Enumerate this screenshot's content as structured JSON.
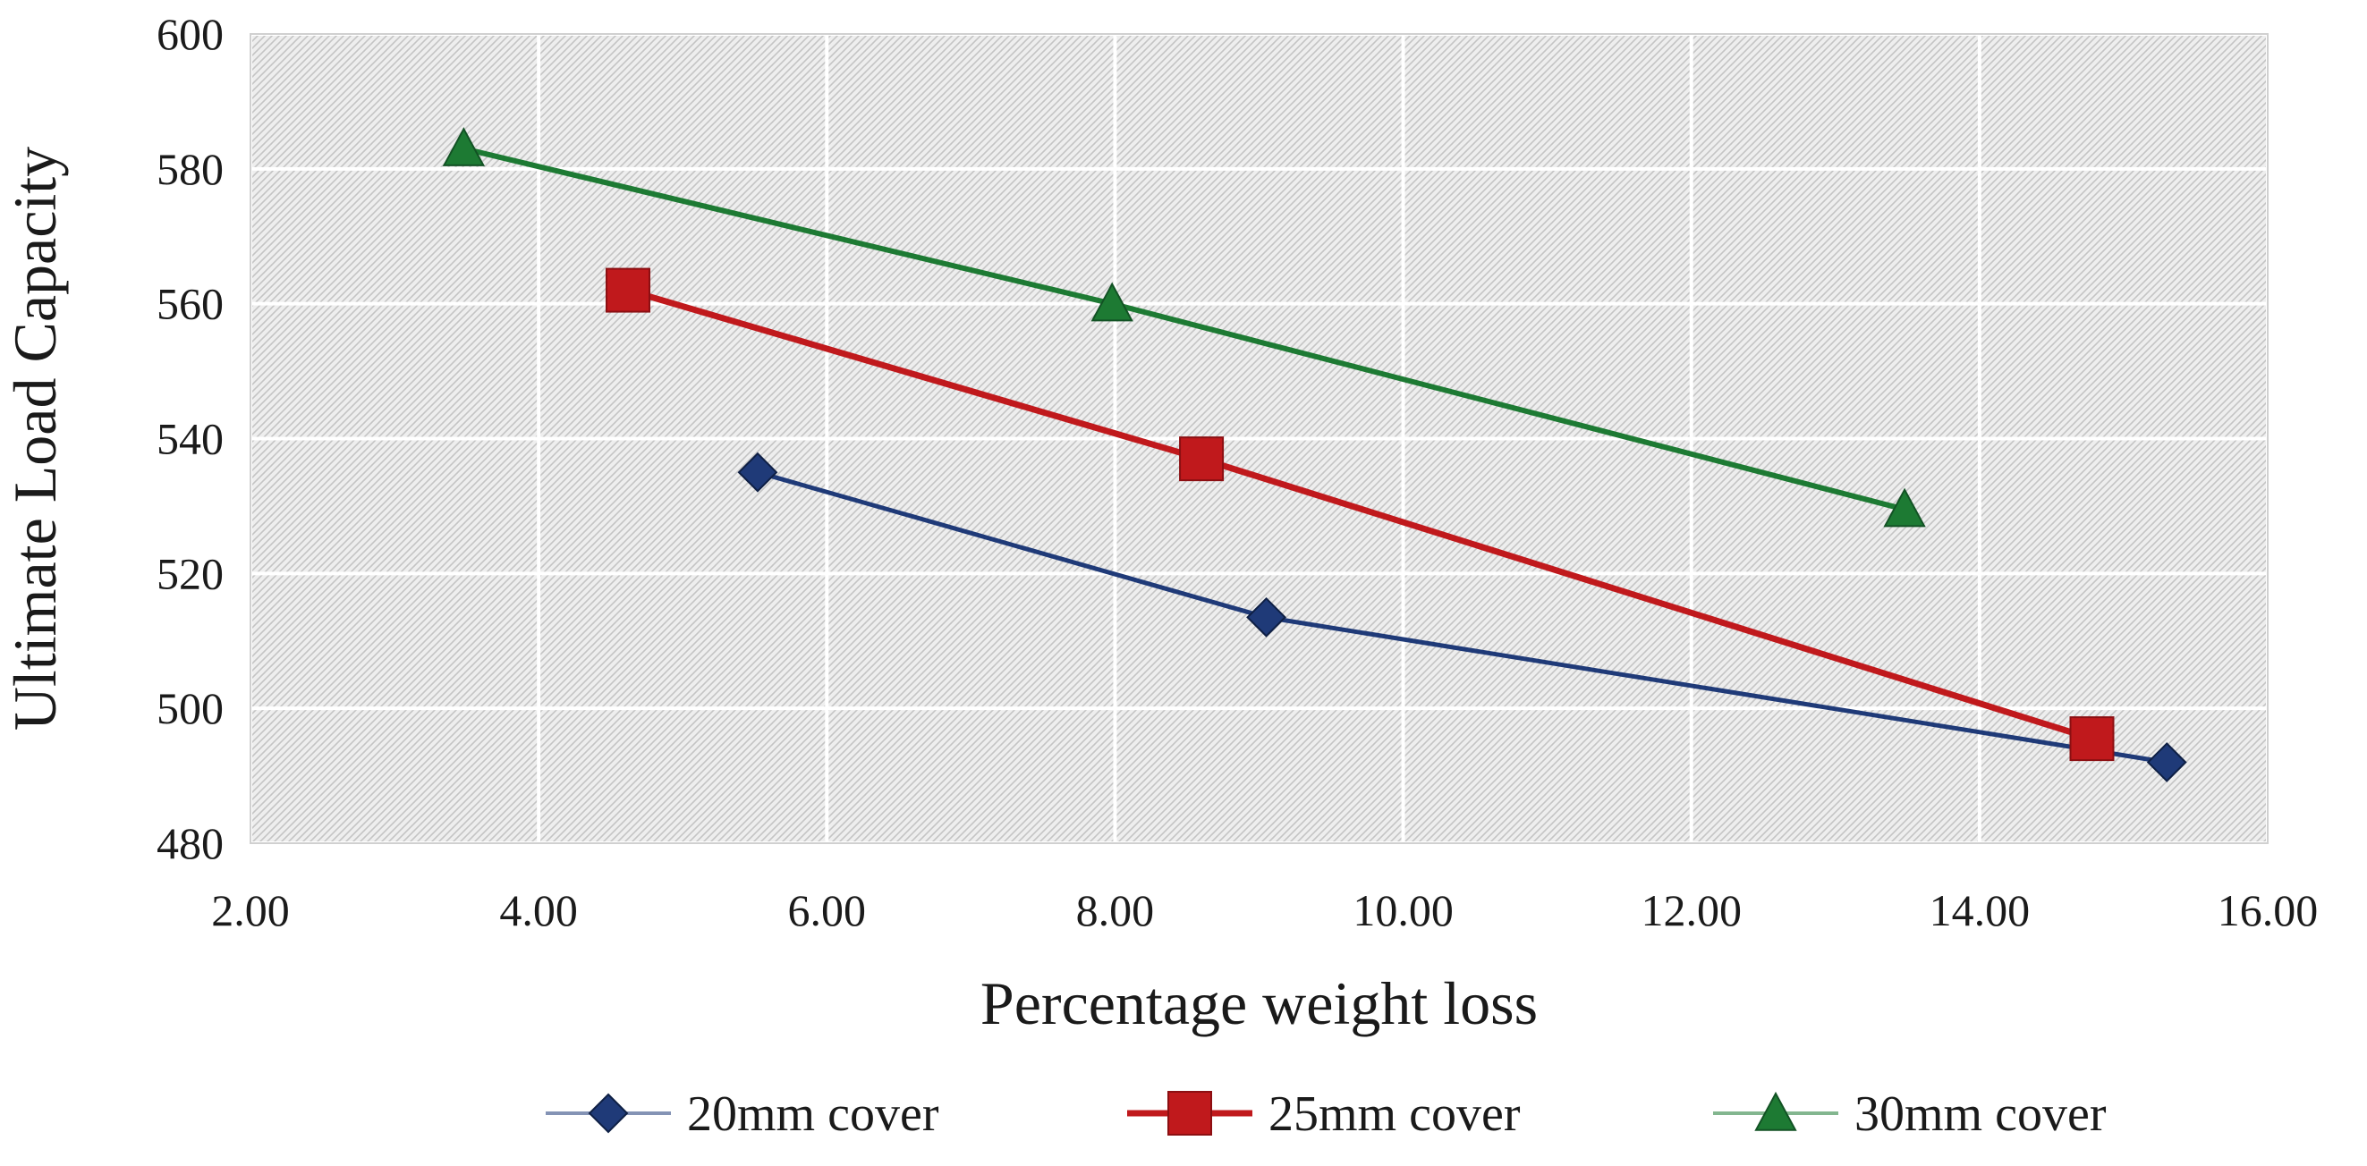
{
  "chart_data": {
    "type": "line",
    "title": "",
    "xlabel": "Percentage weight loss",
    "ylabel": "Ultimate Load Capacity",
    "xlim": [
      2,
      16
    ],
    "ylim": [
      480,
      600
    ],
    "x_ticks": [
      "2.00",
      "4.00",
      "6.00",
      "8.00",
      "10.00",
      "12.00",
      "14.00",
      "16.00"
    ],
    "y_ticks": [
      "480",
      "500",
      "520",
      "540",
      "560",
      "580",
      "600"
    ],
    "grid": true,
    "legend_position": "bottom",
    "series": [
      {
        "name": "20mm cover",
        "marker": "diamond",
        "color": "#1f3a78",
        "x": [
          5.52,
          9.05,
          15.3
        ],
        "y": [
          535,
          513.5,
          492
        ]
      },
      {
        "name": "25mm cover",
        "marker": "square",
        "color": "#c0191c",
        "x": [
          4.62,
          8.6,
          14.78
        ],
        "y": [
          562,
          537,
          495.5
        ]
      },
      {
        "name": "30mm cover",
        "marker": "triangle",
        "color": "#1d7a33",
        "x": [
          3.48,
          7.98,
          13.48
        ],
        "y": [
          583,
          560,
          529.5
        ]
      }
    ]
  }
}
